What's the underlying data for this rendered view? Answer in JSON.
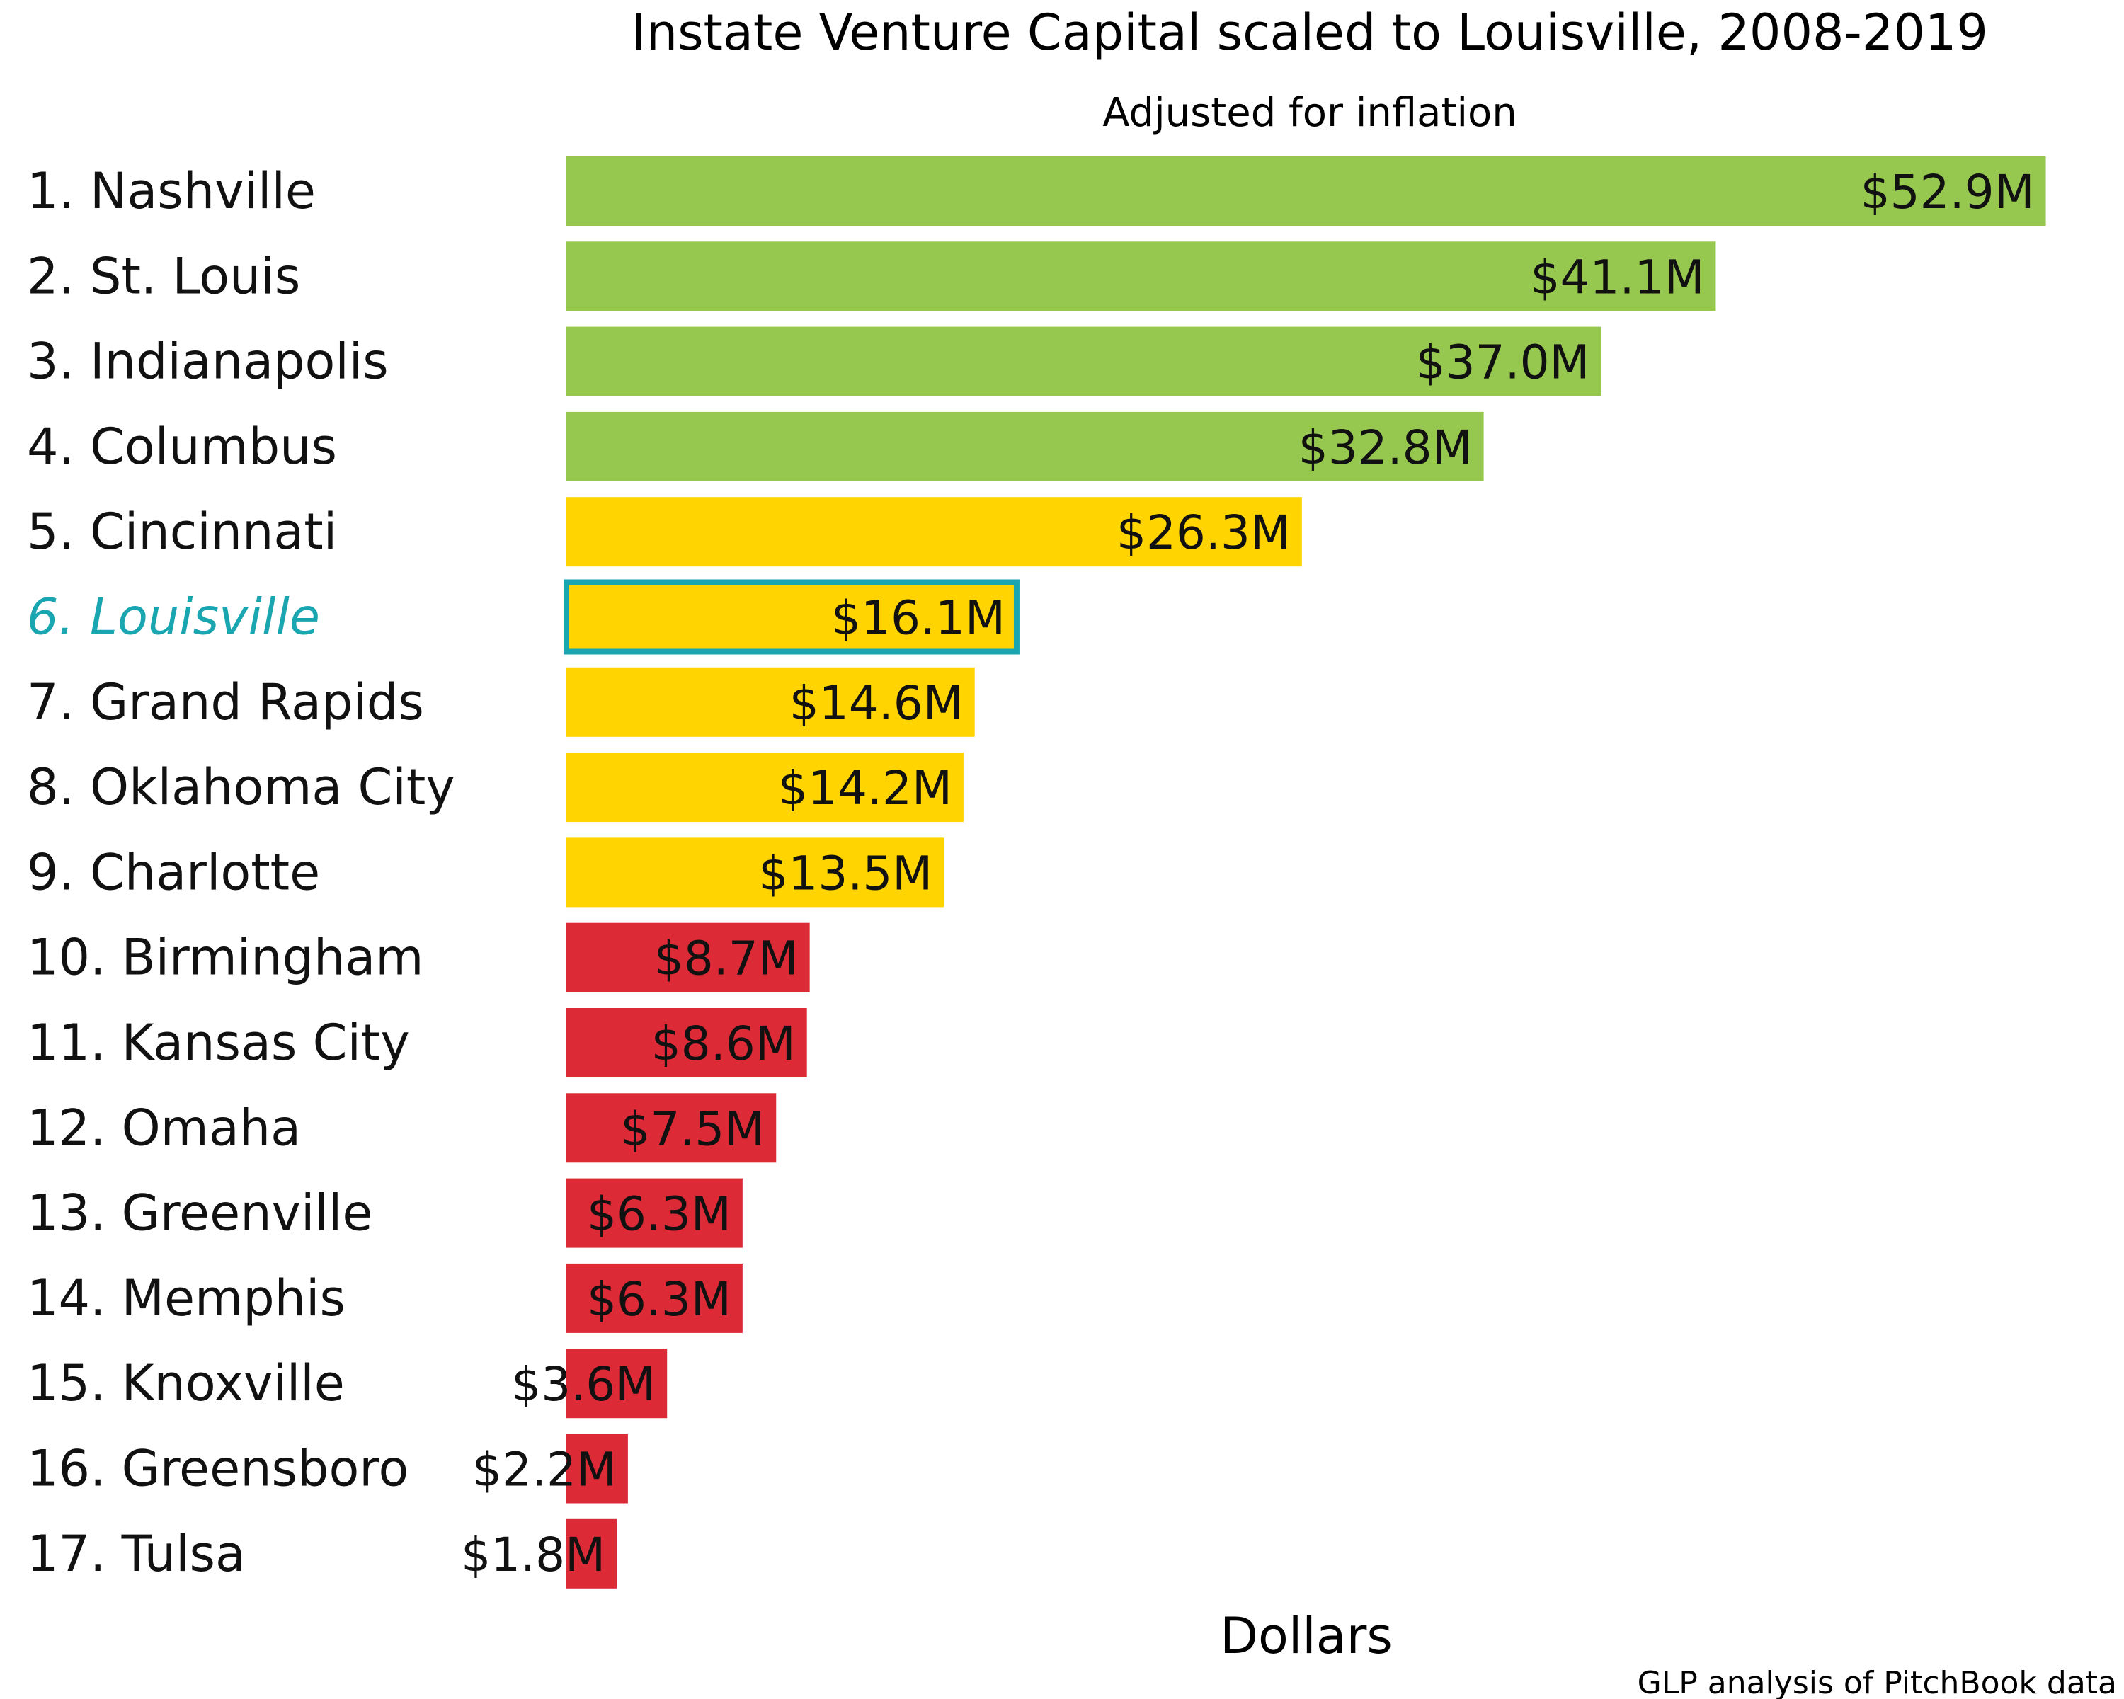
{
  "chart_data": {
    "type": "bar",
    "orientation": "horizontal",
    "title": "Instate Venture Capital scaled to Louisville, 2008-2019",
    "subtitle": "Adjusted for inflation",
    "xlabel": "Dollars",
    "ylabel": "",
    "caption": "GLP analysis of PitchBook data",
    "xlim": [
      0,
      55
    ],
    "grid": false,
    "legend": "none",
    "categories": [
      "1. Nashville",
      "2. St. Louis",
      "3. Indianapolis",
      "4. Columbus",
      "5. Cincinnati",
      "6. Louisville",
      "7. Grand Rapids",
      "8. Oklahoma City",
      "9. Charlotte",
      "10. Birmingham",
      "11. Kansas City",
      "12. Omaha",
      "13. Greenville",
      "14. Memphis",
      "15. Knoxville",
      "16. Greensboro",
      "17. Tulsa"
    ],
    "values": [
      52.9,
      41.1,
      37.0,
      32.8,
      26.3,
      16.1,
      14.6,
      14.2,
      13.5,
      8.7,
      8.6,
      7.5,
      6.3,
      6.3,
      3.6,
      2.2,
      1.8
    ],
    "value_labels": [
      "$52.9M",
      "$41.1M",
      "$37.0M",
      "$32.8M",
      "$26.3M",
      "$16.1M",
      "$14.6M",
      "$14.2M",
      "$13.5M",
      "$8.7M",
      "$8.6M",
      "$7.5M",
      "$6.3M",
      "$6.3M",
      "$3.6M",
      "$2.2M",
      "$1.8M"
    ],
    "tiers": [
      "top",
      "top",
      "top",
      "top",
      "middle",
      "middle",
      "middle",
      "middle",
      "middle",
      "bottom",
      "bottom",
      "bottom",
      "bottom",
      "bottom",
      "bottom",
      "bottom",
      "bottom"
    ],
    "highlight": "6. Louisville",
    "colors": {
      "top": "#96c84f",
      "middle": "#ffd400",
      "bottom": "#dc2a36",
      "highlight": "#1aa6b0",
      "text": "#111111"
    }
  }
}
